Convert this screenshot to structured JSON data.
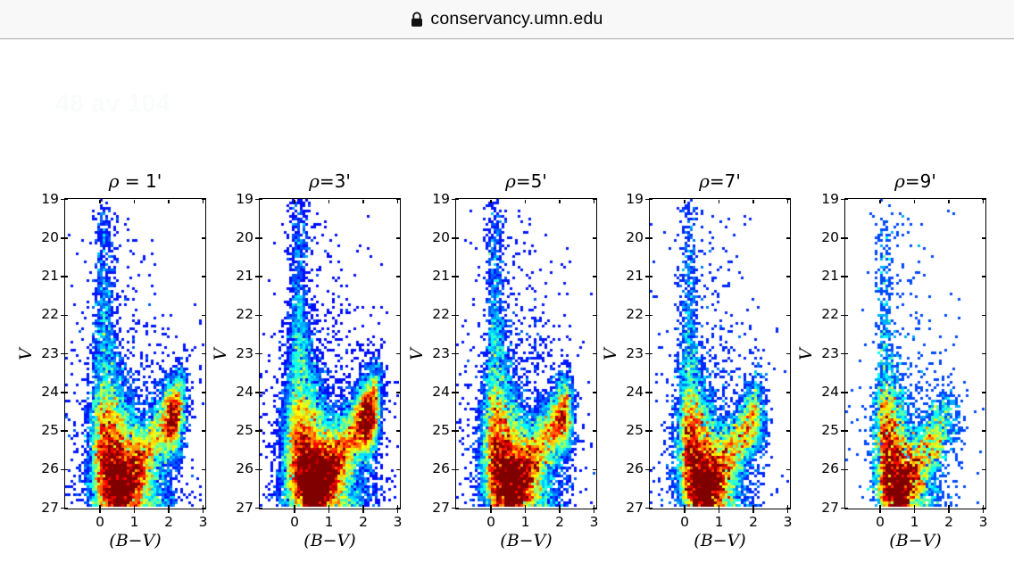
{
  "browser": {
    "url_bar": {
      "lock_icon": "lock-icon",
      "url": "conservancy.umn.edu"
    }
  },
  "page": {
    "page_indicator": "48 av 104",
    "background": "#ffffff"
  },
  "colors": {
    "bar_background": "#f8f8f8",
    "bar_border": "#a6a6a6",
    "frame": "#000000",
    "indicator_text": "#fafbfb",
    "colormap_low": "#000080",
    "colormap_high": "#800000"
  },
  "chart_data": {
    "type": "heatmap",
    "subtype": "color-magnitude Hess diagrams (2D star-count histograms) at five cluster radii",
    "colormap": "jet",
    "colormap_zero": "white",
    "n_panels": 5,
    "xlabel": "(B−V)",
    "ylabel": "V",
    "x_ticks": [
      0,
      1,
      2,
      3
    ],
    "y_ticks": [
      19,
      20,
      21,
      22,
      23,
      24,
      25,
      26,
      27
    ],
    "xlim": [
      -1.0,
      3.05
    ],
    "ylim_top_to_bottom": [
      19,
      27
    ],
    "features": "Each panel: dense dark-red core near (B−V≈0.3, V≈26.3); narrow main-sequence ridge at B−V≈0.12–0.4 rising to V≈21.5; diagonal arm running to a red/orange knot near (B−V≈2.1, V≈24.8); sparse dark-blue field stars scattered above V≈25; overall density and the knot weaken as radius ρ increases from 1′ to 9′.",
    "panels": [
      {
        "title": "ρ = 1'",
        "radius_arcmin": 1,
        "model": {
          "seed": 101,
          "core": 26,
          "msw": 1.0,
          "up": 0.85,
          "arm": 0.42,
          "armXmax": 2.28,
          "knot": 0.55,
          "n": 380,
          "strand2": 0.35
        }
      },
      {
        "title": "ρ=3'",
        "radius_arcmin": 3,
        "model": {
          "seed": 202,
          "core": 30,
          "msw": 1.05,
          "up": 1.05,
          "arm": 0.55,
          "armXmax": 2.3,
          "knot": 0.6,
          "n": 450,
          "strand2": 0.35
        }
      },
      {
        "title": "ρ=5'",
        "radius_arcmin": 5,
        "model": {
          "seed": 303,
          "core": 26,
          "msw": 0.95,
          "up": 0.95,
          "arm": 0.5,
          "armXmax": 2.1,
          "knot": 0.32,
          "n": 450,
          "strand2": 0.5
        }
      },
      {
        "title": "ρ=7'",
        "radius_arcmin": 7,
        "model": {
          "seed": 404,
          "core": 21,
          "msw": 0.85,
          "up": 0.75,
          "arm": 0.46,
          "armXmax": 1.95,
          "knot": 0.18,
          "n": 400,
          "strand2": 0.55
        }
      },
      {
        "title": "ρ=9'",
        "radius_arcmin": 9,
        "model": {
          "seed": 505,
          "core": 15,
          "msw": 0.75,
          "up": 0.6,
          "arm": 0.42,
          "armXmax": 1.75,
          "knot": 0.08,
          "n": 300,
          "strand2": 0.6
        }
      }
    ]
  }
}
